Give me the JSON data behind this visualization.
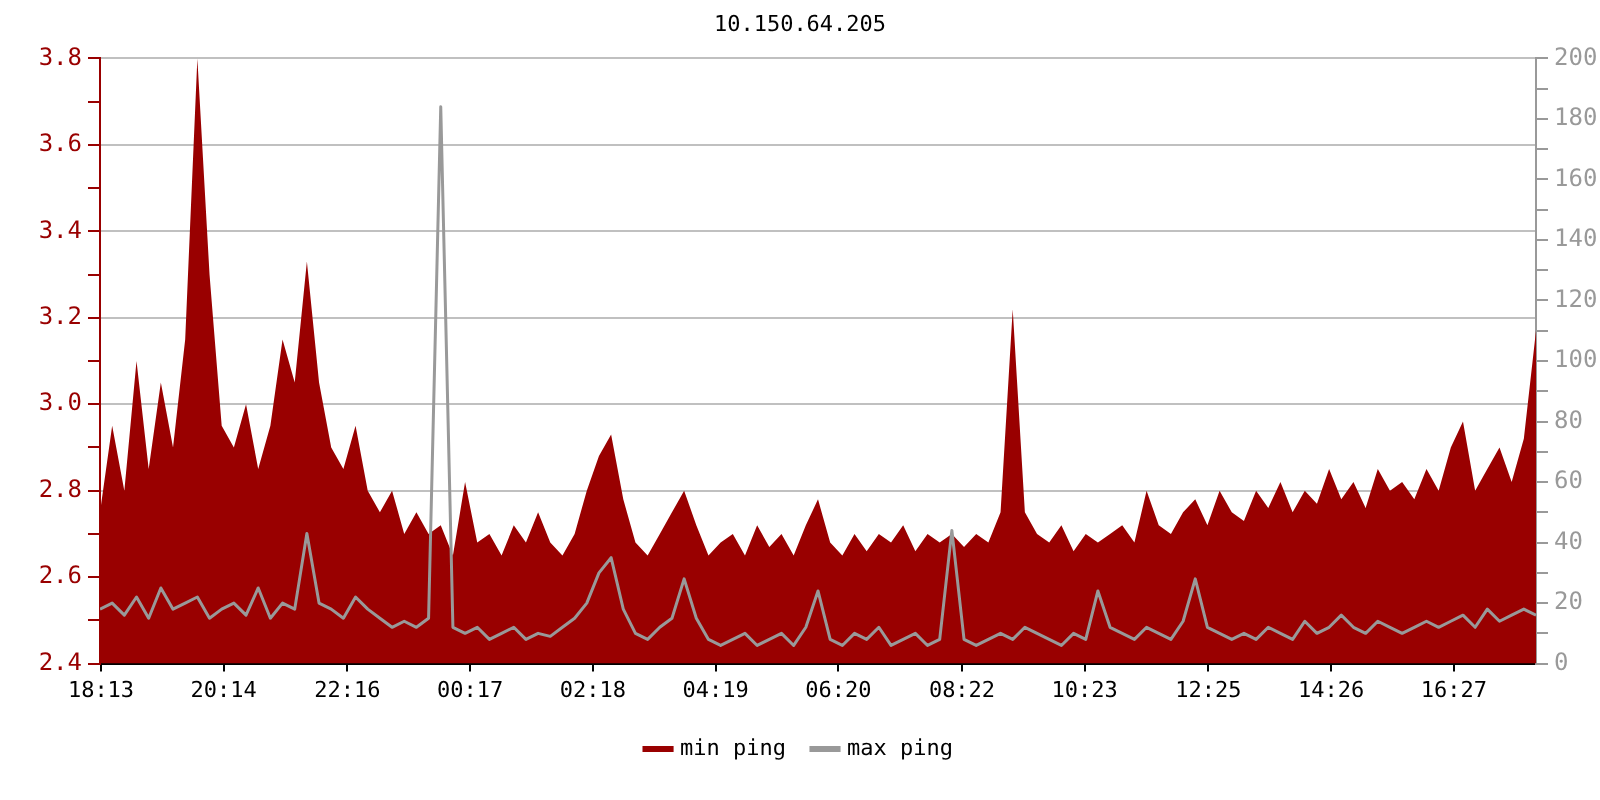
{
  "chart_data": {
    "type": "area",
    "title": "10.150.64.205",
    "grid": "y",
    "legend": "bottom",
    "marker": "none",
    "xlim": [
      "--01-01T18:12",
      "--01-02T17:48"
    ],
    "xticks": [
      {
        "value": "--01-01T18:13",
        "label": "18:13"
      },
      {
        "value": "--01-01T20:14",
        "label": "20:14"
      },
      {
        "value": "--01-01T22:16",
        "label": "22:16"
      },
      {
        "value": "--01-02T00:17",
        "label": "00:17"
      },
      {
        "value": "--01-02T02:18",
        "label": "02:18"
      },
      {
        "value": "--01-02T04:19",
        "label": "04:19"
      },
      {
        "value": "--01-02T06:20",
        "label": "06:20"
      },
      {
        "value": "--01-02T08:22",
        "label": "08:22"
      },
      {
        "value": "--01-02T10:23",
        "label": "10:23"
      },
      {
        "value": "--01-02T12:25",
        "label": "12:25"
      },
      {
        "value": "--01-02T14:26",
        "label": "14:26"
      },
      {
        "value": "--01-02T16:27",
        "label": "16:27"
      }
    ],
    "ylim": [
      2.4,
      3.8
    ],
    "yticks": [
      {
        "value": 2.4,
        "label": "2.4"
      },
      {
        "value": 2.5,
        "label": null
      },
      {
        "value": 2.6,
        "label": "2.6"
      },
      {
        "value": 2.7,
        "label": null
      },
      {
        "value": 2.8,
        "label": "2.8"
      },
      {
        "value": 2.9,
        "label": null
      },
      {
        "value": 3.0,
        "label": "3.0"
      },
      {
        "value": 3.1,
        "label": null
      },
      {
        "value": 3.2,
        "label": "3.2"
      },
      {
        "value": 3.3,
        "label": null
      },
      {
        "value": 3.4,
        "label": "3.4"
      },
      {
        "value": 3.5,
        "label": null
      },
      {
        "value": 3.6,
        "label": "3.6"
      },
      {
        "value": 3.7,
        "label": null
      },
      {
        "value": 3.8,
        "label": "3.8"
      }
    ],
    "y2lim": [
      0,
      200
    ],
    "y2ticks": [
      0,
      {
        "value": 10,
        "label": null
      },
      20,
      {
        "value": 30,
        "label": null
      },
      40,
      {
        "value": 50,
        "label": null
      },
      60,
      {
        "value": 70,
        "label": null
      },
      80,
      {
        "value": 90,
        "label": null
      },
      100,
      {
        "value": 110,
        "label": null
      },
      120,
      {
        "value": 130,
        "label": null
      },
      140,
      {
        "value": 150,
        "label": null
      },
      160,
      {
        "value": 170,
        "label": null
      },
      180,
      {
        "value": 190,
        "label": null
      },
      200
    ],
    "x": [
      "--01-01T18:12",
      "--01-01T18:24",
      "--01-01T18:36",
      "--01-01T18:48",
      "--01-01T19:00",
      "--01-01T19:12",
      "--01-01T19:24",
      "--01-01T19:36",
      "--01-01T19:48",
      "--01-01T20:00",
      "--01-01T20:12",
      "--01-01T20:24",
      "--01-01T20:36",
      "--01-01T20:48",
      "--01-01T21:00",
      "--01-01T21:12",
      "--01-01T21:24",
      "--01-01T21:36",
      "--01-01T21:48",
      "--01-01T22:00",
      "--01-01T22:12",
      "--01-01T22:24",
      "--01-01T22:36",
      "--01-01T22:48",
      "--01-01T23:00",
      "--01-01T23:12",
      "--01-01T23:24",
      "--01-01T23:36",
      "--01-01T23:48",
      "--01-02T00:00",
      "--01-02T00:12",
      "--01-02T00:24",
      "--01-02T00:36",
      "--01-02T00:48",
      "--01-02T01:00",
      "--01-02T01:12",
      "--01-02T01:24",
      "--01-02T01:36",
      "--01-02T01:48",
      "--01-02T02:00",
      "--01-02T02:12",
      "--01-02T02:24",
      "--01-02T02:36",
      "--01-02T02:48",
      "--01-02T03:00",
      "--01-02T03:12",
      "--01-02T03:24",
      "--01-02T03:36",
      "--01-02T03:48",
      "--01-02T04:00",
      "--01-02T04:12",
      "--01-02T04:24",
      "--01-02T04:36",
      "--01-02T04:48",
      "--01-02T05:00",
      "--01-02T05:12",
      "--01-02T05:24",
      "--01-02T05:36",
      "--01-02T05:48",
      "--01-02T06:00",
      "--01-02T06:12",
      "--01-02T06:24",
      "--01-02T06:36",
      "--01-02T06:48",
      "--01-02T07:00",
      "--01-02T07:12",
      "--01-02T07:24",
      "--01-02T07:36",
      "--01-02T07:48",
      "--01-02T08:00",
      "--01-02T08:12",
      "--01-02T08:24",
      "--01-02T08:36",
      "--01-02T08:48",
      "--01-02T09:00",
      "--01-02T09:12",
      "--01-02T09:24",
      "--01-02T09:36",
      "--01-02T09:48",
      "--01-02T10:00",
      "--01-02T10:12",
      "--01-02T10:24",
      "--01-02T10:36",
      "--01-02T10:48",
      "--01-02T11:00",
      "--01-02T11:12",
      "--01-02T11:24",
      "--01-02T11:36",
      "--01-02T11:48",
      "--01-02T12:00",
      "--01-02T12:12",
      "--01-02T12:24",
      "--01-02T12:36",
      "--01-02T12:48",
      "--01-02T13:00",
      "--01-02T13:12",
      "--01-02T13:24",
      "--01-02T13:36",
      "--01-02T13:48",
      "--01-02T14:00",
      "--01-02T14:12",
      "--01-02T14:24",
      "--01-02T14:36",
      "--01-02T14:48",
      "--01-02T15:00",
      "--01-02T15:12",
      "--01-02T15:24",
      "--01-02T15:36",
      "--01-02T15:48",
      "--01-02T16:00",
      "--01-02T16:12",
      "--01-02T16:24",
      "--01-02T16:36",
      "--01-02T16:48",
      "--01-02T17:00",
      "--01-02T17:12",
      "--01-02T17:24",
      "--01-02T17:36",
      "--01-02T17:48"
    ],
    "series": [
      {
        "name": "min ping",
        "type": "area",
        "color": "#990000",
        "values": [
          2.75,
          2.95,
          2.8,
          3.1,
          2.85,
          3.05,
          2.9,
          3.15,
          3.8,
          3.3,
          2.95,
          2.9,
          3.0,
          2.85,
          2.95,
          3.15,
          3.05,
          3.33,
          3.05,
          2.9,
          2.85,
          2.95,
          2.8,
          2.75,
          2.8,
          2.7,
          2.75,
          2.7,
          2.72,
          2.65,
          2.82,
          2.68,
          2.7,
          2.65,
          2.72,
          2.68,
          2.75,
          2.68,
          2.65,
          2.7,
          2.8,
          2.88,
          2.93,
          2.78,
          2.68,
          2.65,
          2.7,
          2.75,
          2.8,
          2.72,
          2.65,
          2.68,
          2.7,
          2.65,
          2.72,
          2.67,
          2.7,
          2.65,
          2.72,
          2.78,
          2.68,
          2.65,
          2.7,
          2.66,
          2.7,
          2.68,
          2.72,
          2.66,
          2.7,
          2.68,
          2.7,
          2.67,
          2.7,
          2.68,
          2.75,
          3.22,
          2.75,
          2.7,
          2.68,
          2.72,
          2.66,
          2.7,
          2.68,
          2.7,
          2.72,
          2.68,
          2.8,
          2.72,
          2.7,
          2.75,
          2.78,
          2.72,
          2.8,
          2.75,
          2.73,
          2.8,
          2.76,
          2.82,
          2.75,
          2.8,
          2.77,
          2.85,
          2.78,
          2.82,
          2.76,
          2.85,
          2.8,
          2.82,
          2.78,
          2.85,
          2.8,
          2.9,
          2.96,
          2.8,
          2.85,
          2.9,
          2.82,
          2.92,
          3.17
        ]
      },
      {
        "name": "max ping",
        "type": "line",
        "axis": "y2",
        "color": "#999999",
        "values": [
          18,
          20,
          16,
          22,
          15,
          25,
          18,
          20,
          22,
          15,
          18,
          20,
          16,
          25,
          15,
          20,
          18,
          43,
          20,
          18,
          15,
          22,
          18,
          15,
          12,
          14,
          12,
          15,
          184,
          12,
          10,
          12,
          8,
          10,
          12,
          8,
          10,
          9,
          12,
          15,
          20,
          30,
          35,
          18,
          10,
          8,
          12,
          15,
          28,
          15,
          8,
          6,
          8,
          10,
          6,
          8,
          10,
          6,
          12,
          24,
          8,
          6,
          10,
          8,
          12,
          6,
          8,
          10,
          6,
          8,
          44,
          8,
          6,
          8,
          10,
          8,
          12,
          10,
          8,
          6,
          10,
          8,
          24,
          12,
          10,
          8,
          12,
          10,
          8,
          14,
          28,
          12,
          10,
          8,
          10,
          8,
          12,
          10,
          8,
          14,
          10,
          12,
          16,
          12,
          10,
          14,
          12,
          10,
          12,
          14,
          12,
          14,
          16,
          12,
          18,
          14,
          16,
          18,
          16
        ]
      }
    ]
  }
}
